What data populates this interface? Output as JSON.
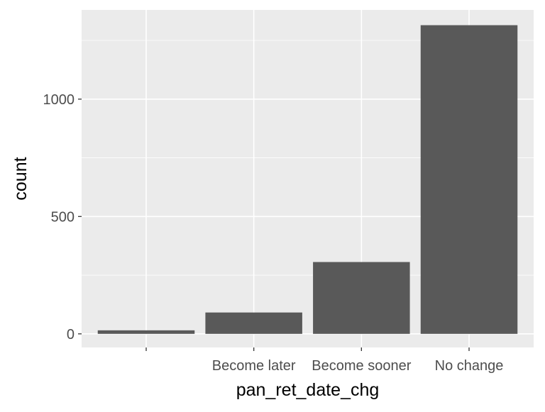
{
  "chart_data": {
    "type": "bar",
    "categories": [
      "",
      "Become later",
      "Become sooner",
      "No change"
    ],
    "values": [
      15,
      91,
      306,
      1315
    ],
    "xlabel": "pan_ret_date_chg",
    "ylabel": "count",
    "ylim": [
      -58,
      1380
    ],
    "yticks": [
      0,
      500,
      1000
    ],
    "ytick_labels": [
      "0",
      "500",
      "1000"
    ],
    "grid": true,
    "legend": "none",
    "colors": {
      "panel_background": "#EBEBEB",
      "grid_major": "#FFFFFF",
      "bar_fill": "#595959",
      "axis_text": "#4D4D4D",
      "title_text": "#000000",
      "tick_mark": "#333333"
    }
  }
}
